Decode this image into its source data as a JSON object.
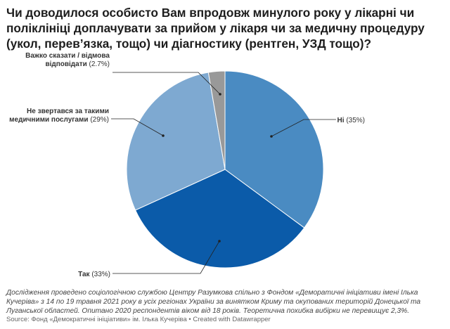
{
  "title": "Чи доводилося особисто Вам впродовж минулого року у лікарні чи поліклініці доплачувати за прийом у лікаря чи за медичну процедуру (укол, перев’язка, тощо) чи діагностику (рентген, УЗД тощо)?",
  "notes": "Дослідження проведено соціологічною службою Центру Разумкова спільно з Фондом «Деморатичні ініціативи імені Ілька Кучеріва» з 14 по 19 травня 2021 року в усіх регіонах України за винятком Криму та окупованих територій Донецької та Луганської областей. Опитано 2020 респондентів віком від 18 років. Теоретична похибка вибірки не перевищує 2,3%.",
  "footer": "Source: Фонд «Демократичні ініціативи» ім. Ілька Кучеріва • Created with Datawrapper",
  "chart_data": {
    "type": "pie",
    "title": "Чи доводилося особисто Вам впродовж минулого року у лікарні чи поліклініці доплачувати за прийом у лікаря чи за медичну процедуру (укол, перев’язка, тощо) чи діагностику (рентген, УЗД тощо)?",
    "slices": [
      {
        "label_lines": [
          "Ні"
        ],
        "value_text": "(35%)",
        "value": 35,
        "color": "#4a8bc2"
      },
      {
        "label_lines": [
          "Так"
        ],
        "value_text": "(33%)",
        "value": 33,
        "color": "#0b5ba9"
      },
      {
        "label_lines": [
          "Не звертався за такими",
          "медичними послугами"
        ],
        "value_text": "(29%)",
        "value": 29,
        "color": "#7ea9d1"
      },
      {
        "label_lines": [
          "Важко сказати / відмова",
          "відповідати"
        ],
        "value_text": "(2.7%)",
        "value": 2.7,
        "color": "#999999"
      }
    ]
  }
}
